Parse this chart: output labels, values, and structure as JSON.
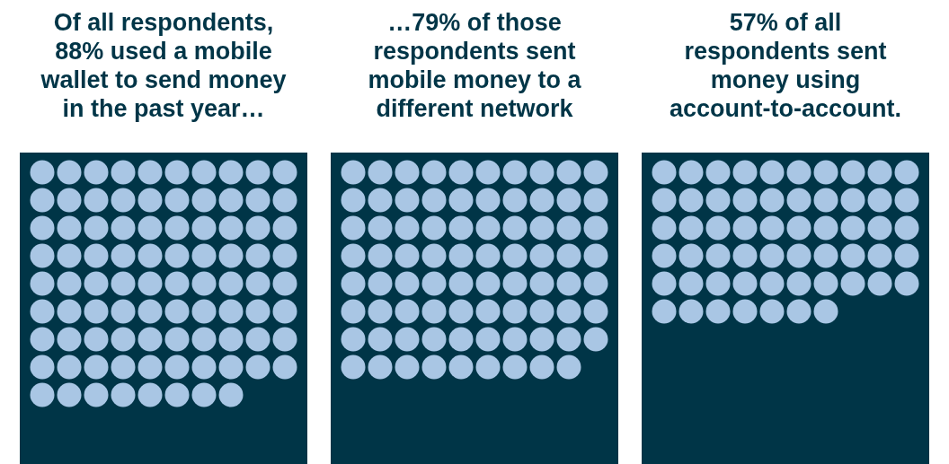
{
  "chart_data": [
    {
      "type": "other",
      "title": "Of all respondents, 88% used a mobile wallet to send money in the past year…",
      "values": [
        88
      ],
      "color": "#a9c6e4",
      "data_labels": true
    },
    {
      "type": "other",
      "title": "…79% of those respondents sent mobile money to a different network",
      "values": [
        79
      ],
      "color": "#a9c6e4",
      "data_labels": true
    },
    {
      "type": "other",
      "title": "57% of all respondents sent money using account-to-account.",
      "values": [
        57
      ],
      "color": "#a9c6e4",
      "data_labels": true
    }
  ]
}
